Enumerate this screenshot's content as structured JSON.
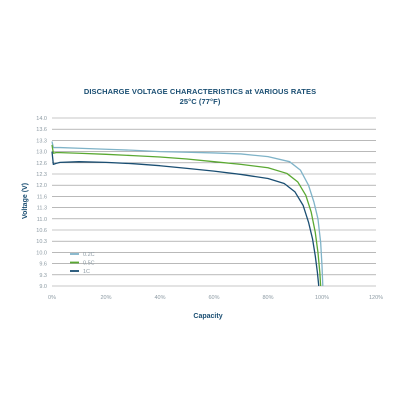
{
  "chart_data": {
    "type": "line",
    "title": "DISCHARGE VOLTAGE CHARACTERISTICS at VARIOUS RATES",
    "subtitle": "25°C (77°F)",
    "xlabel": "Capacity",
    "ylabel": "Voltage (V)",
    "xlim": [
      0,
      120
    ],
    "ylim": [
      9.0,
      14.0
    ],
    "x_ticks": [
      "0%",
      "20%",
      "40%",
      "60%",
      "80%",
      "100%",
      "120%"
    ],
    "x_tick_values": [
      0,
      20,
      40,
      60,
      80,
      100,
      120
    ],
    "y_ticks": [
      "9.0",
      "9.3",
      "9.6",
      "10.0",
      "10.3",
      "10.6",
      "11.0",
      "11.3",
      "11.6",
      "12.0",
      "12.3",
      "12.6",
      "13.0",
      "13.3",
      "13.6",
      "14.0"
    ],
    "grid": "horizontal",
    "legend_position": "bottom-left",
    "series": [
      {
        "name": "0.2C",
        "color": "#7fb3c8",
        "x": [
          0,
          0.5,
          1.5,
          3,
          10,
          20,
          30,
          40,
          50,
          60,
          70,
          80,
          88,
          92,
          95,
          97,
          98.5,
          99.5,
          100,
          100.3
        ],
        "y": [
          13.3,
          13.12,
          13.12,
          13.12,
          13.1,
          13.07,
          13.04,
          13.0,
          12.98,
          12.96,
          12.93,
          12.85,
          12.7,
          12.45,
          12.0,
          11.5,
          11.0,
          10.3,
          9.6,
          9.0
        ]
      },
      {
        "name": "0.5C",
        "color": "#5aa832",
        "x": [
          0,
          0.5,
          1.5,
          3,
          10,
          20,
          30,
          40,
          50,
          60,
          70,
          80,
          87,
          91,
          94,
          96,
          97.5,
          98.5,
          99.2,
          99.5
        ],
        "y": [
          13.2,
          12.95,
          12.97,
          12.97,
          12.95,
          12.92,
          12.88,
          12.84,
          12.78,
          12.7,
          12.62,
          12.52,
          12.35,
          12.1,
          11.7,
          11.2,
          10.6,
          10.0,
          9.4,
          9.0
        ]
      },
      {
        "name": "1C",
        "color": "#1a4e72",
        "x": [
          0,
          0.5,
          1.5,
          3,
          10,
          20,
          30,
          40,
          50,
          60,
          70,
          80,
          86,
          90,
          93,
          95,
          96.5,
          97.5,
          98.3,
          98.8
        ],
        "y": [
          13.0,
          12.62,
          12.65,
          12.68,
          12.7,
          12.68,
          12.64,
          12.58,
          12.5,
          12.42,
          12.32,
          12.2,
          12.05,
          11.8,
          11.4,
          10.9,
          10.4,
          9.9,
          9.4,
          9.0
        ]
      }
    ]
  }
}
